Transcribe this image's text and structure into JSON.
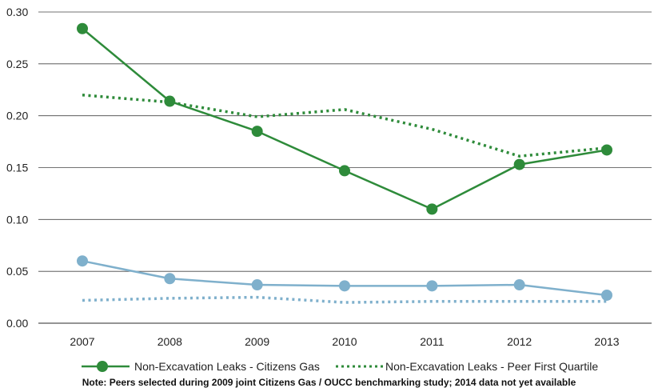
{
  "chart_data": {
    "type": "line",
    "x": [
      "2007",
      "2008",
      "2009",
      "2010",
      "2011",
      "2012",
      "2013"
    ],
    "ylim": [
      0,
      0.3
    ],
    "yticks": [
      "0.00",
      "0.05",
      "0.10",
      "0.15",
      "0.20",
      "0.25",
      "0.30"
    ],
    "ytick_values": [
      0,
      0.05,
      0.1,
      0.15,
      0.2,
      0.25,
      0.3
    ],
    "grid": true,
    "legend_placement": "bottom",
    "series": [
      {
        "name": "Non-Excavation Leaks - Citizens Gas",
        "style": "solid-markers",
        "color": "#2e8b3a",
        "values": [
          0.284,
          0.214,
          0.185,
          0.147,
          0.11,
          0.153,
          0.167
        ],
        "in_legend": true
      },
      {
        "name": "Non-Excavation Leaks - Peer First Quartile",
        "style": "dotted",
        "color": "#2e8b3a",
        "values": [
          0.22,
          0.213,
          0.199,
          0.206,
          0.187,
          0.161,
          0.169
        ],
        "in_legend": true
      },
      {
        "name": "",
        "style": "solid-markers",
        "color": "#7fb0cc",
        "values": [
          0.06,
          0.043,
          0.037,
          0.036,
          0.036,
          0.037,
          0.027
        ],
        "in_legend": false
      },
      {
        "name": "",
        "style": "dotted",
        "color": "#7fb0cc",
        "values": [
          0.022,
          0.024,
          0.025,
          0.02,
          0.021,
          0.021,
          0.021
        ],
        "in_legend": false
      }
    ]
  },
  "legend": {
    "item1": "Non-Excavation Leaks - Citizens Gas",
    "item2": "Non-Excavation Leaks - Peer First Quartile"
  },
  "note": "Note: Peers selected during 2009 joint Citizens Gas / OUCC benchmarking study; 2014 data not yet available"
}
